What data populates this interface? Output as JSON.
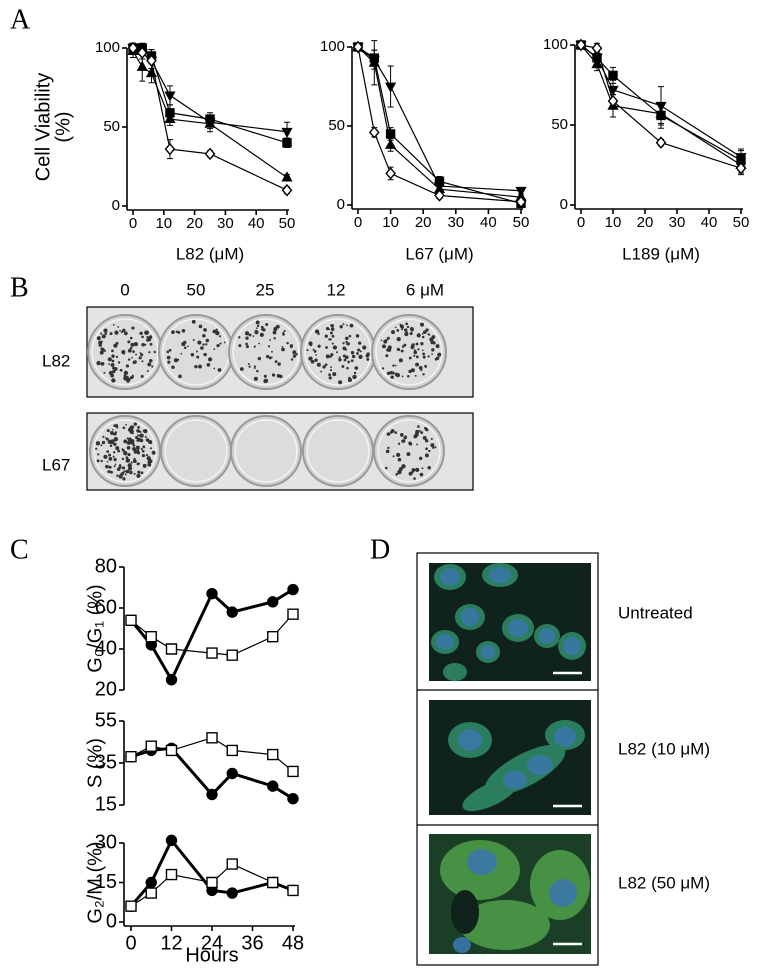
{
  "panel_labels": [
    "A",
    "B",
    "C",
    "D"
  ],
  "colony_assay": {
    "concentrations": [
      "0",
      "50",
      "25",
      "12",
      "6 μM"
    ],
    "compounds": [
      "L82",
      "L67"
    ]
  },
  "microscopy": {
    "conditions": [
      "Untreated",
      "L82 (10 μM)",
      "L82 (50 μM)"
    ]
  },
  "chart_data": [
    {
      "type": "line",
      "ylabel": [
        "Cell Viability",
        "(%)"
      ],
      "xlabel": "L82 (μM)",
      "x": [
        0,
        3,
        6,
        12,
        25,
        50
      ],
      "xlim": [
        0,
        50
      ],
      "xticks": [
        0,
        10,
        20,
        30,
        40,
        50
      ],
      "ylim": [
        0,
        100
      ],
      "yticks": [
        0,
        50,
        100
      ],
      "series": [
        {
          "marker": "square",
          "color": "#000000",
          "values": [
            100,
            100,
            95,
            59,
            55,
            40
          ],
          "errors": [
            2,
            3,
            4,
            5,
            4,
            3
          ]
        },
        {
          "marker": "triangle-down",
          "color": "#000000",
          "values": [
            100,
            97,
            92,
            70,
            53,
            47
          ],
          "errors": [
            3,
            4,
            5,
            6,
            4,
            6
          ]
        },
        {
          "marker": "triangle-up",
          "color": "#000000",
          "values": [
            98,
            88,
            84,
            55,
            52,
            18
          ],
          "errors": [
            4,
            9,
            6,
            4,
            5,
            2
          ]
        },
        {
          "marker": "diamond-open",
          "color": "#000000",
          "values": [
            100,
            97,
            92,
            36,
            33,
            10
          ],
          "errors": [
            3,
            4,
            7,
            6,
            2,
            2
          ]
        }
      ]
    },
    {
      "type": "line",
      "xlabel": "L67 (μM)",
      "x": [
        0,
        5,
        10,
        25,
        50
      ],
      "xlim": [
        0,
        50
      ],
      "xticks": [
        0,
        10,
        20,
        30,
        40,
        50
      ],
      "ylim": [
        0,
        100
      ],
      "yticks": [
        0,
        50,
        100
      ],
      "series": [
        {
          "marker": "triangle-down",
          "color": "#000000",
          "values": [
            100,
            92,
            75,
            12,
            9
          ],
          "errors": [
            1,
            6,
            13,
            3,
            2
          ]
        },
        {
          "marker": "square",
          "color": "#000000",
          "values": [
            100,
            93,
            45,
            15,
            1
          ],
          "errors": [
            1,
            5,
            4,
            3,
            1
          ]
        },
        {
          "marker": "triangle-up",
          "color": "#000000",
          "values": [
            100,
            90,
            38,
            10,
            5
          ],
          "errors": [
            1,
            14,
            4,
            3,
            2
          ]
        },
        {
          "marker": "diamond-open",
          "color": "#000000",
          "values": [
            100,
            46,
            20,
            6,
            2
          ],
          "errors": [
            1,
            3,
            4,
            2,
            1
          ]
        }
      ]
    },
    {
      "type": "line",
      "xlabel": "L189 (μM)",
      "x": [
        0,
        5,
        10,
        25,
        50
      ],
      "xlim": [
        0,
        50
      ],
      "xticks": [
        0,
        10,
        20,
        30,
        40,
        50
      ],
      "ylim": [
        0,
        100
      ],
      "yticks": [
        0,
        50,
        100
      ],
      "series": [
        {
          "marker": "triangle-down",
          "color": "#000000",
          "values": [
            100,
            92,
            72,
            62,
            30
          ],
          "errors": [
            1,
            5,
            6,
            12,
            5
          ]
        },
        {
          "marker": "square",
          "color": "#000000",
          "values": [
            100,
            92,
            81,
            56,
            28
          ],
          "errors": [
            1,
            4,
            5,
            8,
            6
          ]
        },
        {
          "marker": "triangle-up",
          "color": "#000000",
          "values": [
            100,
            88,
            62,
            57,
            25
          ],
          "errors": [
            1,
            4,
            7,
            6,
            5
          ]
        },
        {
          "marker": "diamond-open",
          "color": "#000000",
          "values": [
            100,
            98,
            65,
            39,
            23
          ],
          "errors": [
            1,
            3,
            4,
            2,
            4
          ]
        }
      ]
    },
    {
      "type": "line",
      "ylabel": [
        "G₀/G₁ (%)"
      ],
      "x": [
        0,
        6,
        12,
        24,
        30,
        42,
        48
      ],
      "xlim": [
        0,
        48
      ],
      "ylim": [
        20,
        80
      ],
      "yticks": [
        20,
        40,
        60,
        80
      ],
      "series": [
        {
          "marker": "circle",
          "color": "#000000",
          "values": [
            54,
            42,
            25,
            67,
            58,
            63,
            69
          ]
        },
        {
          "marker": "square-open",
          "color": "#000000",
          "values": [
            54,
            46,
            40,
            38,
            37,
            46,
            57
          ]
        }
      ]
    },
    {
      "type": "line",
      "ylabel": [
        "S (%)"
      ],
      "x": [
        0,
        6,
        12,
        24,
        30,
        42,
        48
      ],
      "xlim": [
        0,
        48
      ],
      "ylim": [
        15,
        55
      ],
      "yticks": [
        15,
        35,
        55
      ],
      "series": [
        {
          "marker": "circle",
          "color": "#000000",
          "values": [
            38,
            41,
            42,
            20,
            30,
            24,
            18
          ]
        },
        {
          "marker": "square-open",
          "color": "#000000",
          "values": [
            38,
            43,
            41,
            47,
            41,
            39,
            31
          ]
        }
      ]
    },
    {
      "type": "line",
      "ylabel": [
        "G₂/M (%)"
      ],
      "xlabel": "Hours",
      "x": [
        0,
        6,
        12,
        24,
        30,
        42,
        48
      ],
      "xlim": [
        0,
        48
      ],
      "xticks": [
        0,
        12,
        24,
        36,
        48
      ],
      "ylim": [
        0,
        30
      ],
      "yticks": [
        0,
        15,
        30
      ],
      "series": [
        {
          "marker": "circle",
          "color": "#000000",
          "values": [
            6,
            15,
            31,
            12,
            11,
            15,
            12
          ]
        },
        {
          "marker": "square-open",
          "color": "#000000",
          "values": [
            6,
            11,
            18,
            15,
            22,
            15,
            12
          ]
        }
      ]
    }
  ]
}
